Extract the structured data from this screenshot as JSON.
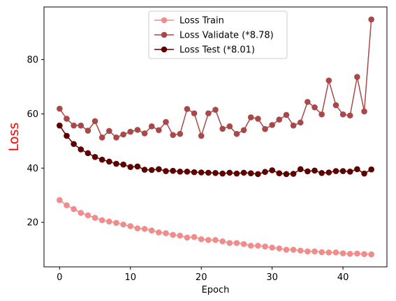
{
  "chart_data": {
    "type": "line",
    "xlabel": "Epoch",
    "ylabel": "Loss",
    "ylabel_color": "#ff0000",
    "xlim": [
      -2.2,
      46.2
    ],
    "ylim": [
      3.6,
      99.4
    ],
    "xticks": [
      0,
      10,
      20,
      30,
      40
    ],
    "yticks": [
      20,
      40,
      60,
      80
    ],
    "grid": false,
    "legend_position": "upper center",
    "series": [
      {
        "name": "Loss Train",
        "color": "#f08c8a",
        "marker": "circle",
        "x": [
          0,
          1,
          2,
          3,
          4,
          5,
          6,
          7,
          8,
          9,
          10,
          11,
          12,
          13,
          14,
          15,
          16,
          17,
          18,
          19,
          20,
          21,
          22,
          23,
          24,
          25,
          26,
          27,
          28,
          29,
          30,
          31,
          32,
          33,
          34,
          35,
          36,
          37,
          38,
          39,
          40,
          41,
          42,
          43,
          44
        ],
        "values": [
          28.2,
          26.3,
          24.9,
          23.5,
          22.6,
          21.7,
          20.8,
          20.3,
          19.8,
          19.2,
          18.6,
          17.8,
          17.6,
          17.0,
          16.3,
          16.0,
          15.4,
          15.1,
          14.4,
          14.6,
          13.8,
          13.5,
          13.5,
          13.0,
          12.4,
          12.4,
          12.0,
          11.4,
          11.4,
          11.1,
          10.7,
          10.4,
          9.9,
          9.9,
          9.6,
          9.3,
          9.3,
          9.0,
          8.9,
          8.9,
          8.6,
          8.4,
          8.5,
          8.3,
          8.2
        ]
      },
      {
        "name": "Loss Validate (*8.78)",
        "color": "#a84848",
        "marker": "circle",
        "x": [
          0,
          1,
          2,
          3,
          4,
          5,
          6,
          7,
          8,
          9,
          10,
          11,
          12,
          13,
          14,
          15,
          16,
          17,
          18,
          19,
          20,
          21,
          22,
          23,
          24,
          25,
          26,
          27,
          28,
          29,
          30,
          31,
          32,
          33,
          34,
          35,
          36,
          37,
          38,
          39,
          40,
          41,
          42,
          43,
          44
        ],
        "values": [
          61.9,
          58.2,
          55.7,
          55.7,
          53.8,
          57.3,
          51.3,
          53.7,
          51.3,
          52.4,
          53.4,
          54.1,
          52.8,
          55.4,
          54.0,
          57.0,
          52.2,
          52.6,
          61.8,
          60.2,
          51.9,
          60.2,
          61.5,
          54.5,
          55.4,
          52.6,
          54.0,
          58.7,
          58.2,
          54.4,
          55.9,
          57.9,
          59.6,
          55.7,
          56.8,
          64.4,
          62.4,
          59.8,
          72.3,
          63.2,
          59.8,
          59.4,
          73.6,
          60.9,
          94.8
        ]
      },
      {
        "name": "Loss Test (*8.01)",
        "color": "#5c0000",
        "marker": "circle",
        "x": [
          0,
          1,
          2,
          3,
          4,
          5,
          6,
          7,
          8,
          9,
          10,
          11,
          12,
          13,
          14,
          15,
          16,
          17,
          18,
          19,
          20,
          21,
          22,
          23,
          24,
          25,
          26,
          27,
          28,
          29,
          30,
          31,
          32,
          33,
          34,
          35,
          36,
          37,
          38,
          39,
          40,
          41,
          42,
          43,
          44
        ],
        "values": [
          55.7,
          51.9,
          48.9,
          46.9,
          45.5,
          44.1,
          43.1,
          42.4,
          41.6,
          41.3,
          40.4,
          40.6,
          39.4,
          39.3,
          39.6,
          38.9,
          39.0,
          38.7,
          38.7,
          38.5,
          38.4,
          38.3,
          38.2,
          38.0,
          38.3,
          38.0,
          38.3,
          38.1,
          37.8,
          38.6,
          39.2,
          38.1,
          37.8,
          37.9,
          39.6,
          38.8,
          39.1,
          38.2,
          38.4,
          38.9,
          38.9,
          38.7,
          39.6,
          38.0,
          39.5
        ]
      }
    ]
  }
}
